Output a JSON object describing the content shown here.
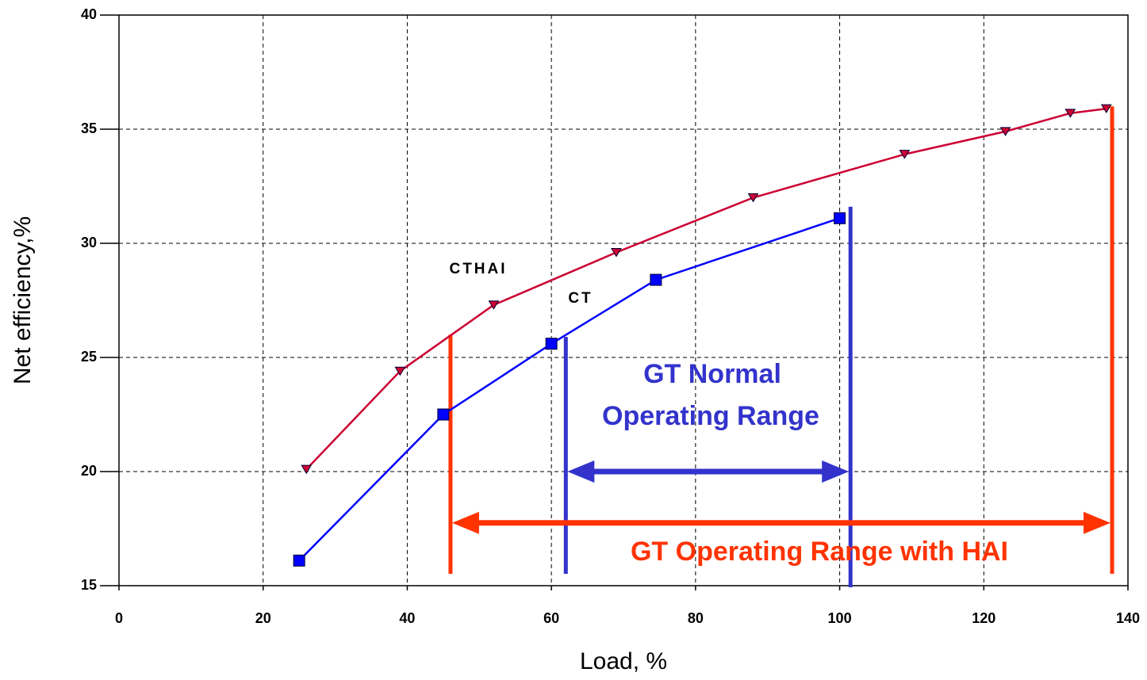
{
  "chart_data": {
    "type": "line",
    "x_label": "Load, %",
    "y_label": "Net efficiency,%",
    "xlim": [
      0,
      140
    ],
    "xticks": [
      0,
      20,
      40,
      60,
      80,
      100,
      120,
      140
    ],
    "ylim": [
      15,
      40
    ],
    "yticks": [
      15,
      20,
      25,
      30,
      35,
      40
    ],
    "grid": true,
    "series": [
      {
        "name": "CTHAI",
        "color": "#cc0033",
        "marker": "triangle-down",
        "x": [
          26,
          39,
          52,
          69,
          88,
          109,
          123,
          132,
          137
        ],
        "values": [
          20.1,
          24.4,
          27.3,
          29.6,
          32.0,
          33.9,
          34.9,
          35.7,
          35.9
        ]
      },
      {
        "name": "CT",
        "color": "#0000ff",
        "marker": "square",
        "x": [
          25,
          45,
          60,
          74.5,
          100
        ],
        "values": [
          16.1,
          22.5,
          25.6,
          28.4,
          31.1
        ]
      }
    ],
    "ranges": [
      {
        "label": [
          "GT Normal",
          "Operating Range"
        ],
        "color": "#3333cc",
        "from": 62,
        "to": 101.5,
        "y": 20,
        "tops": [
          25.9,
          31.6
        ]
      },
      {
        "label": [
          "GT Operating Range with HAI"
        ],
        "color": "#ff3300",
        "from": 46,
        "to": 137.8,
        "y": 17.75,
        "tops": [
          26,
          36
        ]
      }
    ]
  }
}
